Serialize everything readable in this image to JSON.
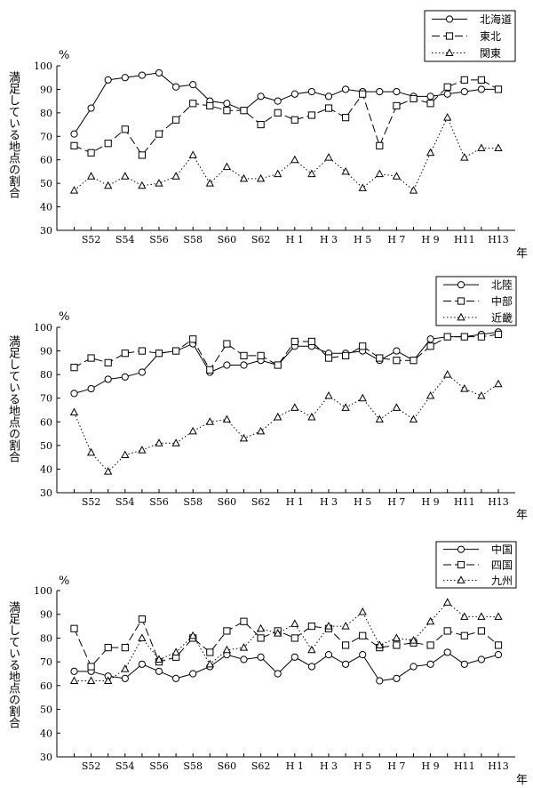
{
  "y_label": "満足している地点の割合",
  "y_unit": "%",
  "x_unit": "年",
  "chart_data": [
    {
      "type": "line",
      "x": [
        "S51",
        "S52",
        "S53",
        "S54",
        "S55",
        "S56",
        "S57",
        "S58",
        "S59",
        "S60",
        "S61",
        "S62",
        "S63",
        "H1",
        "H2",
        "H3",
        "H4",
        "H5",
        "H6",
        "H7",
        "H8",
        "H9",
        "H10",
        "H11",
        "H12",
        "H13"
      ],
      "x_tick_labels": [
        "S52",
        "S54",
        "S56",
        "S58",
        "S60",
        "S62",
        "H 1",
        "H 3",
        "H 5",
        "H 7",
        "H 9",
        "H11",
        "H13"
      ],
      "y_ticks": [
        30,
        40,
        50,
        60,
        70,
        80,
        90,
        100
      ],
      "ylim": [
        30,
        100
      ],
      "legend_position": "top-right",
      "series": [
        {
          "name": "北海道",
          "marker": "circle",
          "style": "solid",
          "values": [
            71,
            82,
            94,
            95,
            96,
            97,
            91,
            92,
            85,
            84,
            81,
            87,
            85,
            88,
            89,
            87,
            90,
            89,
            89,
            89,
            87,
            87,
            88,
            89,
            90,
            90
          ]
        },
        {
          "name": "東北",
          "marker": "square",
          "style": "dash",
          "values": [
            66,
            63,
            67,
            73,
            62,
            71,
            77,
            84,
            83,
            81,
            81,
            75,
            80,
            77,
            79,
            82,
            78,
            88,
            66,
            83,
            86,
            84,
            91,
            94,
            94,
            90
          ]
        },
        {
          "name": "関東",
          "marker": "triangle",
          "style": "dot",
          "values": [
            47,
            53,
            49,
            53,
            49,
            50,
            53,
            62,
            50,
            57,
            52,
            52,
            54,
            60,
            54,
            61,
            55,
            48,
            54,
            53,
            47,
            63,
            78,
            61,
            65,
            65
          ]
        }
      ]
    },
    {
      "type": "line",
      "x": [
        "S51",
        "S52",
        "S53",
        "S54",
        "S55",
        "S56",
        "S57",
        "S58",
        "S59",
        "S60",
        "S61",
        "S62",
        "S63",
        "H1",
        "H2",
        "H3",
        "H4",
        "H5",
        "H6",
        "H7",
        "H8",
        "H9",
        "H10",
        "H11",
        "H12",
        "H13"
      ],
      "x_tick_labels": [
        "S52",
        "S54",
        "S56",
        "S58",
        "S60",
        "S62",
        "H 1",
        "H 3",
        "H 5",
        "H 7",
        "H 9",
        "H11",
        "H13"
      ],
      "y_ticks": [
        30,
        40,
        50,
        60,
        70,
        80,
        90,
        100
      ],
      "ylim": [
        30,
        100
      ],
      "legend_position": "top-right",
      "series": [
        {
          "name": "北陸",
          "marker": "circle",
          "style": "solid",
          "values": [
            72,
            74,
            78,
            79,
            81,
            89,
            90,
            93,
            81,
            84,
            84,
            86,
            84,
            92,
            92,
            89,
            89,
            90,
            86,
            90,
            86,
            95,
            96,
            96,
            97,
            98
          ]
        },
        {
          "name": "中部",
          "marker": "square",
          "style": "dash",
          "values": [
            83,
            87,
            85,
            89,
            90,
            89,
            90,
            95,
            82,
            93,
            88,
            88,
            84,
            94,
            94,
            87,
            88,
            92,
            87,
            86,
            86,
            92,
            96,
            96,
            96,
            97
          ]
        },
        {
          "name": "近畿",
          "marker": "triangle",
          "style": "dot",
          "values": [
            64,
            47,
            39,
            46,
            48,
            51,
            51,
            56,
            60,
            61,
            53,
            56,
            62,
            66,
            62,
            71,
            66,
            70,
            61,
            66,
            61,
            71,
            80,
            74,
            71,
            76
          ]
        }
      ]
    },
    {
      "type": "line",
      "x": [
        "S51",
        "S52",
        "S53",
        "S54",
        "S55",
        "S56",
        "S57",
        "S58",
        "S59",
        "S60",
        "S61",
        "S62",
        "S63",
        "H1",
        "H2",
        "H3",
        "H4",
        "H5",
        "H6",
        "H7",
        "H8",
        "H9",
        "H10",
        "H11",
        "H12",
        "H13"
      ],
      "x_tick_labels": [
        "S52",
        "S54",
        "S56",
        "S58",
        "S60",
        "S62",
        "H 1",
        "H 3",
        "H 5",
        "H 7",
        "H 9",
        "H11",
        "H13"
      ],
      "y_ticks": [
        30,
        40,
        50,
        60,
        70,
        80,
        90,
        100
      ],
      "ylim": [
        30,
        100
      ],
      "legend_position": "top-right",
      "series": [
        {
          "name": "中国",
          "marker": "circle",
          "style": "solid",
          "values": [
            66,
            66,
            64,
            63,
            69,
            66,
            63,
            65,
            68,
            73,
            71,
            72,
            65,
            72,
            68,
            73,
            69,
            73,
            62,
            63,
            68,
            69,
            74,
            69,
            71,
            73
          ]
        },
        {
          "name": "四国",
          "marker": "square",
          "style": "dash",
          "values": [
            84,
            68,
            76,
            76,
            88,
            70,
            72,
            80,
            74,
            83,
            87,
            80,
            83,
            80,
            85,
            84,
            77,
            81,
            76,
            77,
            78,
            77,
            83,
            81,
            83,
            77
          ]
        },
        {
          "name": "九州",
          "marker": "triangle",
          "style": "dot",
          "values": [
            62,
            62,
            62,
            67,
            80,
            71,
            74,
            81,
            69,
            75,
            76,
            84,
            82,
            86,
            75,
            85,
            85,
            91,
            77,
            80,
            79,
            87,
            95,
            89,
            89,
            89
          ]
        }
      ]
    }
  ]
}
